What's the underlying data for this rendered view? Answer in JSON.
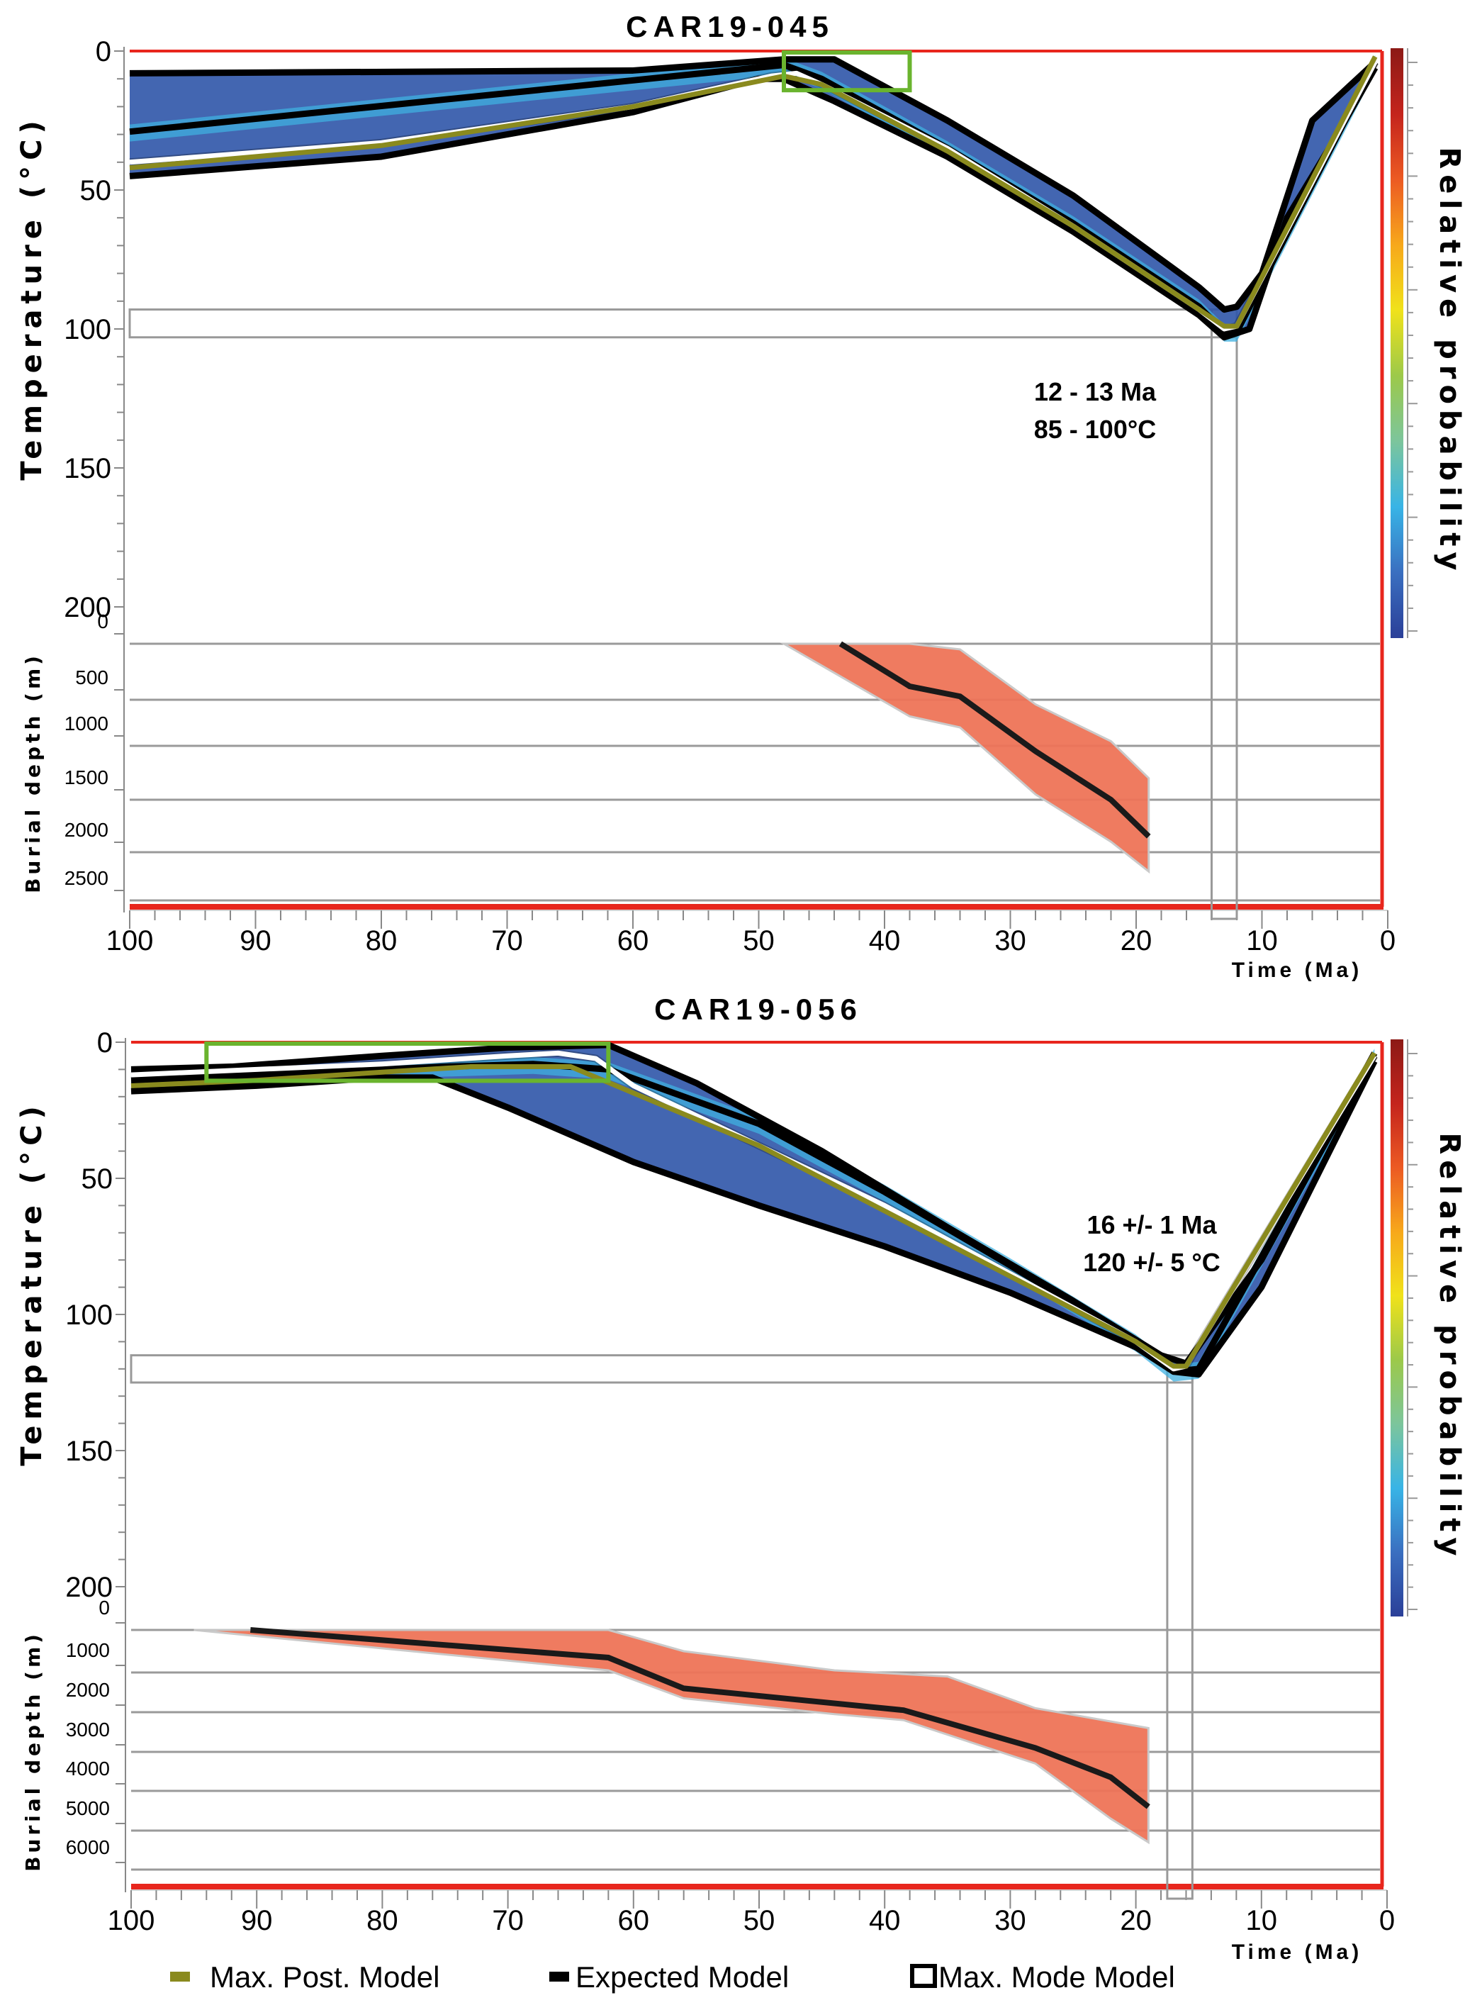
{
  "legend": [
    {
      "label": "Max. Post. Model",
      "color": "#8a8a1e",
      "style": "max-post"
    },
    {
      "label": "Expected Model",
      "color": "#000000",
      "style": "expected"
    },
    {
      "label": "Max. Mode Model",
      "color": "#ffffff",
      "style": "max-mode"
    }
  ],
  "colors": {
    "frame": "#e8261d",
    "constraint_box": "#6ab42e",
    "burial_fill": "#ef7458",
    "grid": "#9a9a9a",
    "max_post": "#8a8a1e",
    "expected": "#000000",
    "max_mode": "#ffffff"
  },
  "colorbar": {
    "label": "Relative probability",
    "stops": [
      "#2b3f98",
      "#3a6fc0",
      "#38b4e6",
      "#7cc59c",
      "#9cc94a",
      "#f0e21a",
      "#f7a81b",
      "#ec5a23",
      "#c4241d",
      "#8c1a16"
    ]
  },
  "chart_data": [
    {
      "type": "line",
      "title": "CAR19-045",
      "xlabel": "Time (Ma)",
      "ylabel": "Temperature (°C)",
      "xlim": [
        100,
        0
      ],
      "ylim": [
        0,
        200
      ],
      "xticks": [
        "100",
        "90",
        "80",
        "70",
        "60",
        "50",
        "40",
        "30",
        "20",
        "10",
        "0"
      ],
      "yticks": [
        "0",
        "50",
        "100",
        "150",
        "200"
      ],
      "annotation": [
        "12 - 13 Ma",
        "85 - 100°C"
      ],
      "constraint_box": {
        "t": [
          48,
          38
        ],
        "T": [
          0,
          10
        ]
      },
      "peak_box": {
        "t": [
          14,
          12
        ],
        "T": [
          93,
          103
        ]
      },
      "series": [
        {
          "name": "Expected Model (upper 95%)",
          "style": "expected",
          "x": [
            100,
            60,
            48,
            44,
            35,
            25,
            15,
            13,
            12,
            10,
            6,
            1
          ],
          "y": [
            8,
            7,
            3,
            3,
            25,
            52,
            85,
            93,
            92,
            80,
            25,
            4
          ]
        },
        {
          "name": "Expected Model (lower 95%)",
          "style": "expected",
          "x": [
            100,
            80,
            60,
            50,
            48,
            44,
            35,
            25,
            15,
            13,
            11,
            8,
            4,
            1
          ],
          "y": [
            45,
            38,
            22,
            10,
            10,
            18,
            38,
            65,
            95,
            103,
            100,
            60,
            30,
            6
          ]
        },
        {
          "name": "Expected Model",
          "style": "expected",
          "x": [
            100,
            48,
            45,
            35,
            25,
            15,
            13,
            12,
            1
          ],
          "y": [
            29,
            5,
            10,
            35,
            62,
            92,
            101,
            101,
            4
          ]
        },
        {
          "name": "Max. Mode Model",
          "style": "max-mode",
          "x": [
            100,
            80,
            60,
            49,
            47,
            45,
            35,
            25,
            15,
            13,
            12,
            1
          ],
          "y": [
            40,
            33,
            20,
            9,
            8,
            12,
            35,
            63,
            93,
            100,
            99,
            4
          ]
        },
        {
          "name": "Max. Post. Model",
          "style": "max-post",
          "x": [
            100,
            80,
            60,
            48,
            45,
            35,
            25,
            15,
            13,
            12,
            1
          ],
          "y": [
            42,
            34,
            20,
            9,
            12,
            36,
            63,
            93,
            99,
            99,
            2
          ]
        }
      ],
      "burial": {
        "ylabel": "Burial depth (m)",
        "yticks": [
          "0",
          "500",
          "1000",
          "1500",
          "2000",
          "2500"
        ],
        "ylim": [
          0,
          2700
        ],
        "expected": {
          "x": [
            43.5,
            38,
            34,
            28,
            22,
            19
          ],
          "y": [
            0,
            380,
            470,
            1050,
            1500,
            1850
          ]
        },
        "envelope_upper": {
          "x": [
            48,
            38,
            34,
            28,
            22,
            19
          ],
          "y": [
            0,
            0,
            50,
            550,
            950,
            1300
          ]
        },
        "envelope_lower": {
          "x": [
            48,
            38,
            34,
            28,
            22,
            19
          ],
          "y": [
            0,
            680,
            800,
            1450,
            1900,
            2200
          ]
        }
      }
    },
    {
      "type": "line",
      "title": "CAR19-056",
      "xlabel": "Time (Ma)",
      "ylabel": "Temperature (°C)",
      "xlim": [
        100,
        0
      ],
      "ylim": [
        0,
        200
      ],
      "xticks": [
        "100",
        "90",
        "80",
        "70",
        "60",
        "50",
        "40",
        "30",
        "20",
        "10",
        "0"
      ],
      "yticks": [
        "0",
        "50",
        "100",
        "150",
        "200"
      ],
      "annotation": [
        "16 +/- 1 Ma",
        "120 +/- 5 °C"
      ],
      "constraint_box": {
        "t": [
          94,
          62
        ],
        "T": [
          0,
          10
        ]
      },
      "peak_box": {
        "t": [
          17.5,
          15.5
        ],
        "T": [
          115,
          125
        ]
      },
      "series": [
        {
          "name": "Expected Model (upper 95%)",
          "style": "expected",
          "x": [
            100,
            92,
            80,
            70,
            62,
            55,
            45,
            35,
            25,
            18,
            16,
            10,
            1
          ],
          "y": [
            10,
            9,
            5,
            2,
            1,
            15,
            40,
            68,
            95,
            115,
            118,
            80,
            4
          ]
        },
        {
          "name": "Expected Model (lower 95%)",
          "style": "expected",
          "x": [
            100,
            90,
            80,
            76,
            70,
            60,
            50,
            40,
            30,
            20,
            17,
            15,
            10,
            1
          ],
          "y": [
            18,
            16,
            13,
            13,
            24,
            44,
            60,
            75,
            92,
            112,
            121,
            122,
            90,
            7
          ]
        },
        {
          "name": "Expected Model",
          "style": "expected",
          "x": [
            100,
            90,
            75,
            68,
            62,
            50,
            40,
            30,
            20,
            17,
            15,
            1
          ],
          "y": [
            14,
            12,
            9,
            8,
            10,
            30,
            55,
            82,
            110,
            121,
            120,
            5
          ]
        },
        {
          "name": "Max. Mode Model",
          "style": "max-mode",
          "x": [
            100,
            90,
            80,
            70,
            66,
            63,
            60,
            50,
            40,
            30,
            20,
            17,
            16,
            1
          ],
          "y": [
            12,
            10,
            8,
            5,
            4,
            6,
            16,
            38,
            60,
            85,
            110,
            120,
            119,
            5
          ]
        },
        {
          "name": "Max. Post. Model",
          "style": "max-post",
          "x": [
            100,
            90,
            80,
            73,
            65,
            50,
            40,
            30,
            20,
            17,
            16,
            1
          ],
          "y": [
            16,
            14,
            11,
            9,
            9,
            38,
            62,
            86,
            110,
            119,
            119,
            4
          ]
        }
      ],
      "burial": {
        "ylabel": "Burial depth (m)",
        "yticks": [
          "0",
          "1000",
          "2000",
          "3000",
          "4000",
          "5000",
          "6000"
        ],
        "ylim": [
          0,
          6400
        ],
        "expected": {
          "x": [
            90.5,
            62,
            56,
            38.5,
            28,
            22,
            19
          ],
          "y": [
            0,
            650,
            1400,
            1950,
            2900,
            3650,
            4400
          ]
        },
        "envelope_upper": {
          "x": [
            95,
            62,
            56,
            44,
            35,
            28,
            19
          ],
          "y": [
            0,
            0,
            500,
            950,
            1100,
            1900,
            2400
          ]
        },
        "envelope_lower": {
          "x": [
            95,
            62,
            56,
            44,
            38.5,
            28,
            22,
            19
          ],
          "y": [
            0,
            950,
            1650,
            2050,
            2200,
            3300,
            4700,
            5300
          ]
        }
      }
    }
  ]
}
